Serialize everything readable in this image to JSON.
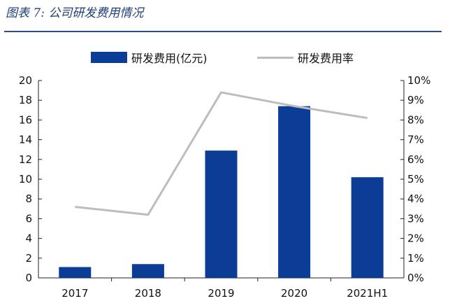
{
  "header": {
    "figure_title": "图表 7:  公司研发费用情况"
  },
  "chart_data": {
    "type": "bar",
    "categories": [
      "2017",
      "2018",
      "2019",
      "2020",
      "2021H1"
    ],
    "series": [
      {
        "name": "研发费用(亿元)",
        "type": "bar",
        "axis": "left",
        "color": "#0b3c96",
        "values": [
          1.1,
          1.4,
          12.9,
          17.4,
          10.2
        ]
      },
      {
        "name": "研发费用率",
        "type": "line",
        "axis": "right",
        "color": "#bdbdbd",
        "values": [
          3.6,
          3.2,
          9.4,
          8.7,
          8.1
        ]
      }
    ],
    "y_left": {
      "range": [
        0,
        20
      ],
      "ticks": [
        0,
        2,
        4,
        6,
        8,
        10,
        12,
        14,
        16,
        18,
        20
      ],
      "tick_labels": [
        "0",
        "2",
        "4",
        "6",
        "8",
        "10",
        "12",
        "14",
        "16",
        "18",
        "20"
      ]
    },
    "y_right": {
      "range": [
        0,
        10
      ],
      "ticks": [
        0,
        1,
        2,
        3,
        4,
        5,
        6,
        7,
        8,
        9,
        10
      ],
      "tick_labels": [
        "0%",
        "1%",
        "2%",
        "3%",
        "4%",
        "5%",
        "6%",
        "7%",
        "8%",
        "9%",
        "10%"
      ]
    },
    "grid": false,
    "legend_position": "top"
  }
}
